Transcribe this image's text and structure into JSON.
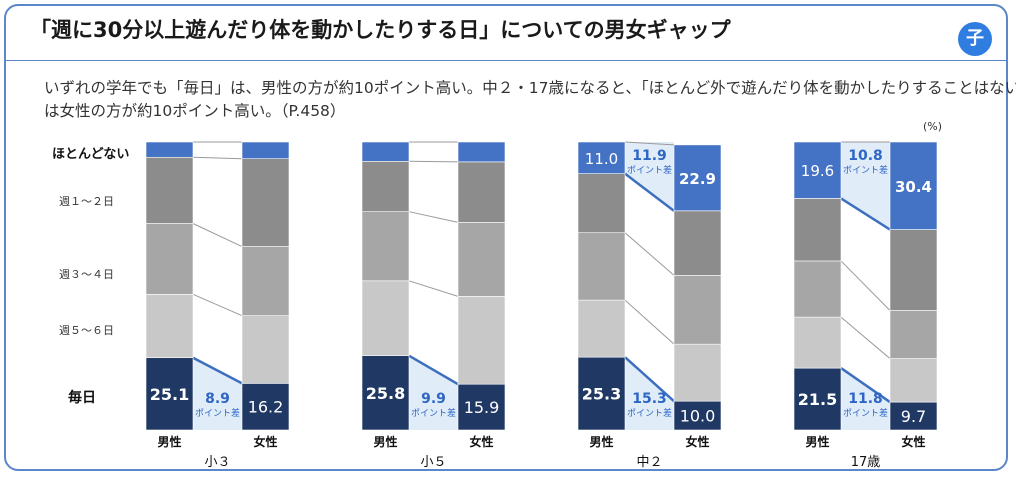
{
  "header": {
    "title": "「週に30分以上遊んだり体を動かしたりする日」についての男女ギャップ",
    "badge": "子"
  },
  "summary": {
    "line1": "いずれの学年でも「毎日」は、男性の方が約10ポイント高い。中２・17歳になると、「ほとんど外で遊んだり体を動かしたりすることはない」",
    "line2": "は女性の方が約10ポイント高い。（P.458）"
  },
  "unit": "(%)",
  "chart_data": {
    "type": "bar",
    "subtype": "100% stacked columns (male vs female per grade)",
    "categories_legend": [
      "ほとんどない",
      "週１～２日",
      "週３～４日",
      "週５～６日",
      "毎日"
    ],
    "colors": {
      "ほとんどない": "#4472c4",
      "週１～２日": "#8c8c8c",
      "週３～４日": "#a6a6a6",
      "週５～６日": "#c8c8c8",
      "毎日": "#203864",
      "gap_fill": "#e1ecf9",
      "gap_text": "#2e66c4"
    },
    "gender_labels": [
      "男性",
      "女性"
    ],
    "gap_suffix": "ポイント差",
    "groups": [
      {
        "name": "小３",
        "male": {
          "毎日": 25.1,
          "週５～６日": 22.0,
          "週３～４日": 24.6,
          "週１～２日": 23.0,
          "ほとんどない": 5.3
        },
        "female": {
          "毎日": 16.2,
          "週５～６日": 23.5,
          "週３～４日": 24.0,
          "週１～２日": 30.5,
          "ほとんどない": 5.8
        },
        "labels": {
          "male": "25.1",
          "female": "16.2"
        },
        "gap": {
          "category": "毎日",
          "value": "8.9"
        }
      },
      {
        "name": "小５",
        "male": {
          "毎日": 25.8,
          "週５～６日": 26.0,
          "週３～４日": 24.0,
          "週１～２日": 17.5,
          "ほとんどない": 6.7
        },
        "female": {
          "毎日": 15.9,
          "週５～６日": 30.5,
          "週３～４日": 25.7,
          "週１～２日": 21.0,
          "ほとんどない": 6.9
        },
        "labels": {
          "male": "25.8",
          "female": "15.9"
        },
        "gap": {
          "category": "毎日",
          "value": "9.9"
        }
      },
      {
        "name": "中２",
        "male": {
          "毎日": 25.3,
          "週５～６日": 19.8,
          "週３～４日": 23.4,
          "週１～２日": 20.5,
          "ほとんどない": 11.0
        },
        "female": {
          "毎日": 10.0,
          "週５～６日": 19.8,
          "週３～４日": 23.9,
          "週１～２日": 22.4,
          "ほとんどない": 22.9
        },
        "labels": {
          "male": "25.3",
          "female": "10.0",
          "male_top": "11.0",
          "female_top": "22.9"
        },
        "gap": {
          "category": "毎日",
          "value": "15.3"
        },
        "gap_top": {
          "category": "ほとんどない",
          "value": "11.9"
        }
      },
      {
        "name": "17歳",
        "male": {
          "毎日": 21.5,
          "週５～６日": 17.7,
          "週３～４日": 19.5,
          "週１～２日": 21.7,
          "ほとんどない": 19.6
        },
        "female": {
          "毎日": 9.7,
          "週５～６日": 15.1,
          "週３～４日": 16.7,
          "週１～２日": 28.1,
          "ほとんどない": 30.4
        },
        "labels": {
          "male": "21.5",
          "female": "9.7",
          "male_top": "19.6",
          "female_top": "30.4"
        },
        "gap": {
          "category": "毎日",
          "value": "11.8"
        },
        "gap_top": {
          "category": "ほとんどない",
          "value": "10.8"
        }
      }
    ]
  }
}
